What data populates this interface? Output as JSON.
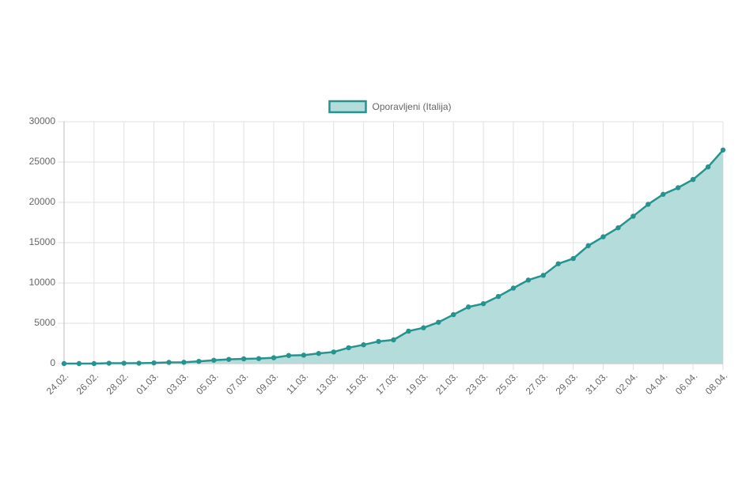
{
  "chart_data": {
    "type": "line",
    "categories": [
      "24.02.",
      null,
      "26.02.",
      null,
      "28.02.",
      null,
      "01.03.",
      null,
      "03.03.",
      null,
      "05.03.",
      null,
      "07.03.",
      null,
      "09.03.",
      null,
      "11.03.",
      null,
      "13.03.",
      null,
      "15.03.",
      null,
      "17.03.",
      null,
      "19.03.",
      null,
      "21.03.",
      null,
      "23.03.",
      null,
      "25.03.",
      null,
      "27.03.",
      null,
      "29.03.",
      null,
      "31.03.",
      null,
      "02.04.",
      null,
      "04.04.",
      null,
      "06.04.",
      null,
      "08.04."
    ],
    "series": [
      {
        "name": "Oporavljeni (Italija)",
        "color": "#26938f",
        "fill": "#b3dcdb",
        "values": [
          1,
          1,
          3,
          45,
          46,
          46,
          83,
          149,
          160,
          276,
          414,
          523,
          589,
          622,
          724,
          1004,
          1045,
          1258,
          1439,
          1966,
          2335,
          2749,
          2941,
          4025,
          4440,
          5129,
          6072,
          7024,
          7432,
          8326,
          9362,
          10361,
          10950,
          12384,
          13030,
          14620,
          15729,
          16847,
          18278,
          19758,
          20996,
          21815,
          22837,
          24392,
          26491
        ]
      }
    ],
    "ylim": [
      0,
      30000
    ],
    "yticks": [
      0,
      5000,
      10000,
      15000,
      20000,
      25000,
      30000
    ],
    "grid": true,
    "legend": "top"
  }
}
